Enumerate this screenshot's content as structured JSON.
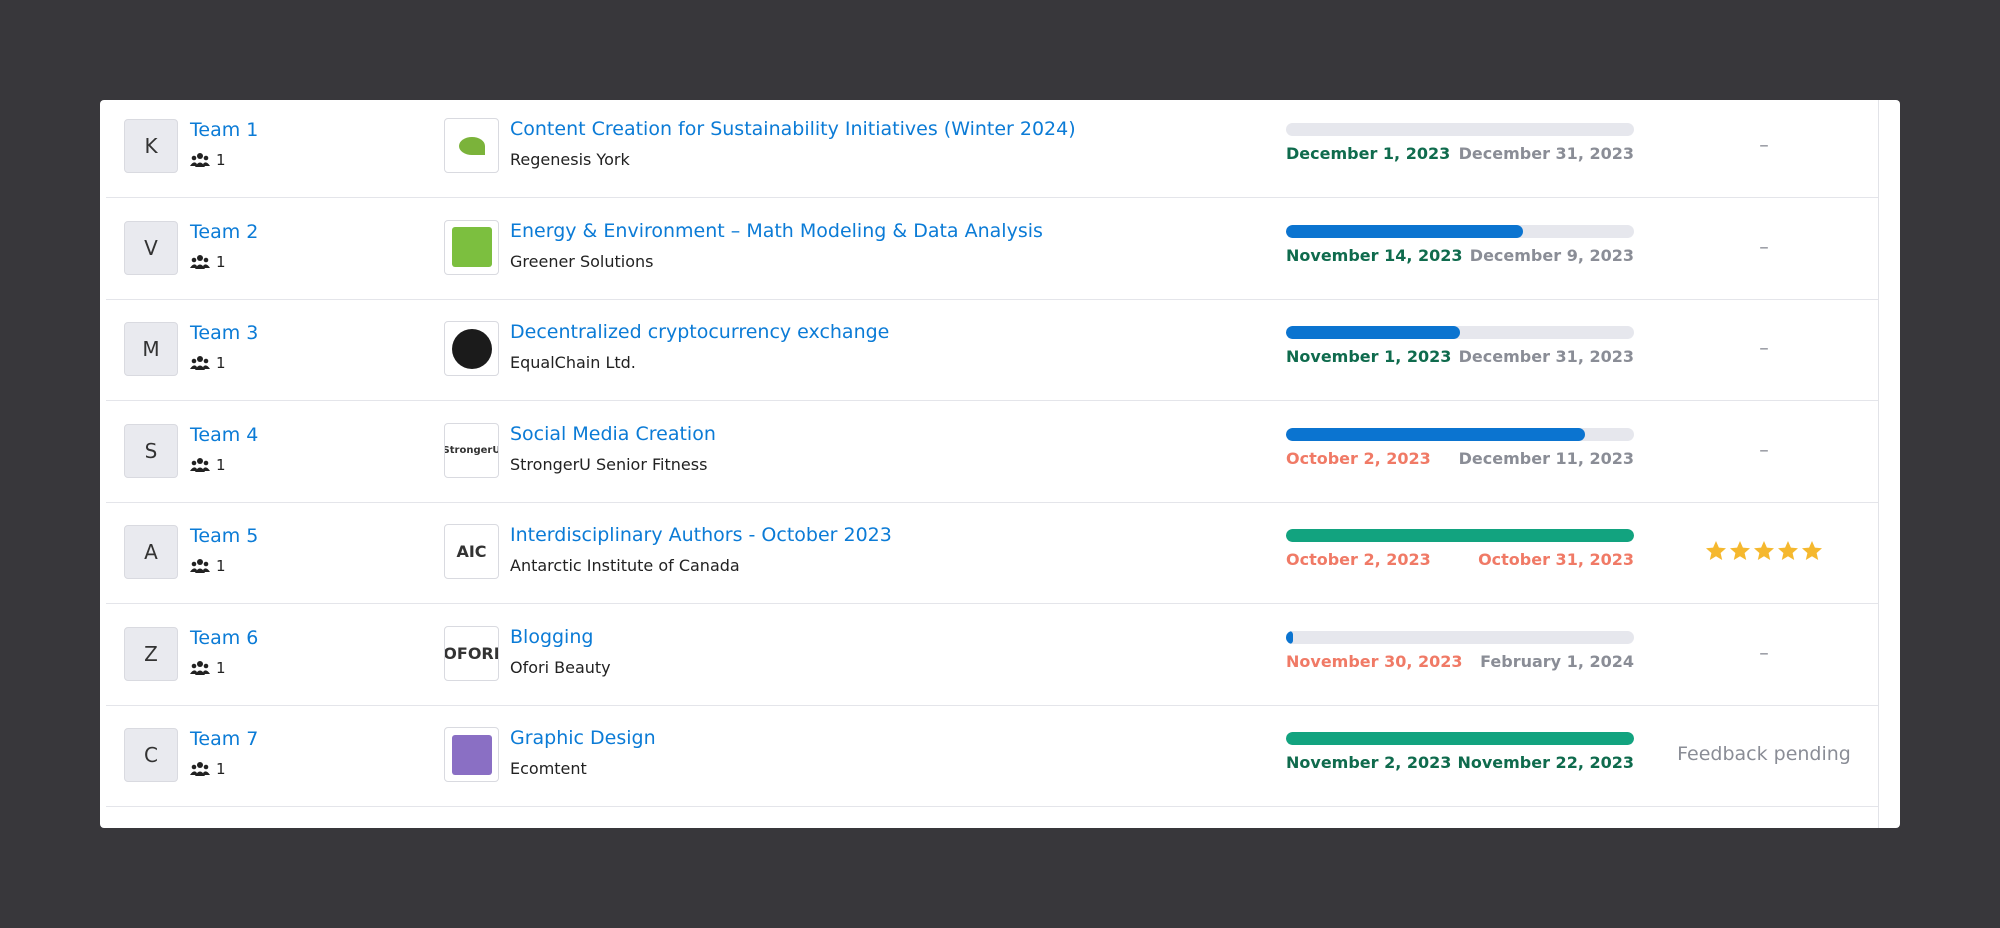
{
  "rows": [
    {
      "avatar": "K",
      "team": "Team 1",
      "members": 1,
      "logo_color": "#7bb33a",
      "project": "Content Creation for Sustainability Initiatives (Winter 2024)",
      "company": "Regenesis York",
      "progress": 0,
      "progress_color": "#0b74d0",
      "start": "December 1, 2023",
      "start_color": "#0f6b4d",
      "end": "December 31, 2023",
      "end_color": "#8a8d96",
      "status": "–"
    },
    {
      "avatar": "V",
      "team": "Team 2",
      "members": 1,
      "logo_color": "#7cbf3f",
      "project": "Energy & Environment – Math Modeling & Data Analysis",
      "company": "Greener Solutions",
      "progress": 68,
      "progress_color": "#0b74d0",
      "start": "November 14, 2023",
      "start_color": "#0f6b4d",
      "end": "December 9, 2023",
      "end_color": "#8a8d96",
      "status": "–"
    },
    {
      "avatar": "M",
      "team": "Team 3",
      "members": 1,
      "logo_color": "#1b1b1b",
      "project": "Decentralized cryptocurrency exchange",
      "company": "EqualChain Ltd.",
      "progress": 50,
      "progress_color": "#0b74d0",
      "start": "November 1, 2023",
      "start_color": "#0f6b4d",
      "end": "December 31, 2023",
      "end_color": "#8a8d96",
      "status": "–"
    },
    {
      "avatar": "S",
      "team": "Team 4",
      "members": 1,
      "logo_color": "#ffffff",
      "logo_text": "StrongerU",
      "project": "Social Media Creation",
      "company": "StrongerU Senior Fitness",
      "progress": 86,
      "progress_color": "#0b74d0",
      "start": "October 2, 2023",
      "start_color": "#f07a66",
      "end": "December 11, 2023",
      "end_color": "#8a8d96",
      "status": "–"
    },
    {
      "avatar": "A",
      "team": "Team 5",
      "members": 1,
      "logo_color": "#ffffff",
      "logo_text": "AIC",
      "project": "Interdisciplinary Authors - October 2023",
      "company": "Antarctic Institute of Canada",
      "progress": 100,
      "progress_color": "#12a37f",
      "start": "October 2, 2023",
      "start_color": "#f07a66",
      "end": "October 31, 2023",
      "end_color": "#f07a66",
      "rating": 5
    },
    {
      "avatar": "Z",
      "team": "Team 6",
      "members": 1,
      "logo_color": "#ffffff",
      "logo_text": "OFORI",
      "project": "Blogging",
      "company": "Ofori Beauty",
      "progress": 2,
      "progress_color": "#0b74d0",
      "start": "November 30, 2023",
      "start_color": "#f07a66",
      "end": "February 1, 2024",
      "end_color": "#8a8d96",
      "status": "–"
    },
    {
      "avatar": "C",
      "team": "Team 7",
      "members": 1,
      "logo_color": "#8a6fc4",
      "project": "Graphic Design",
      "company": "Ecomtent",
      "progress": 100,
      "progress_color": "#12a37f",
      "start": "November 2, 2023",
      "start_color": "#0f6b4d",
      "end": "November 22, 2023",
      "end_color": "#0f6b4d",
      "status": "Feedback pending"
    }
  ]
}
